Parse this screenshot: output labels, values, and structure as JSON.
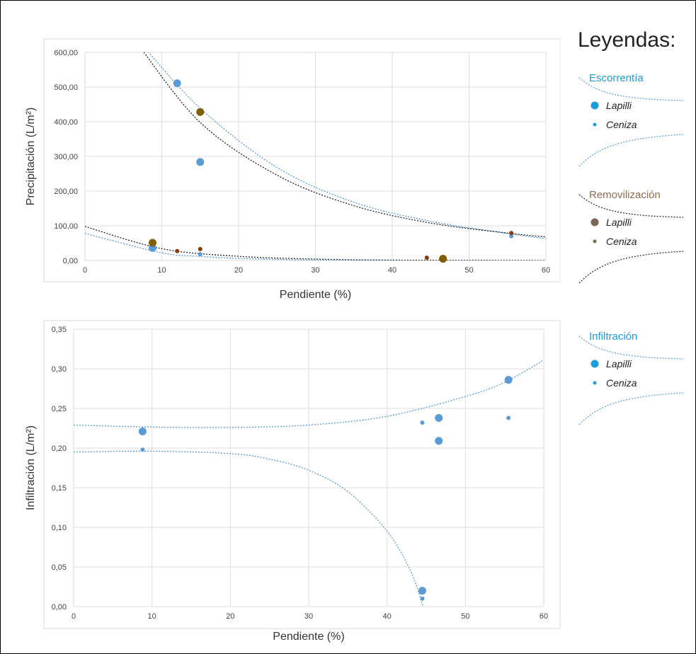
{
  "chart_data": [
    {
      "type": "scatter",
      "xlabel": "Pendiente (%)",
      "ylabel": "Precipitación (L/m²)",
      "xlim": [
        0,
        60
      ],
      "ylim": [
        0,
        600
      ],
      "x_ticks": [
        "0",
        "10",
        "20",
        "30",
        "40",
        "50",
        "60"
      ],
      "y_ticks": [
        "0,00",
        "100,00",
        "200,00",
        "300,00",
        "400,00",
        "500,00",
        "600,00"
      ],
      "grid": true,
      "series": [
        {
          "color": "#5b9bd5",
          "marker": "large",
          "points": [
            [
              12,
              511
            ],
            [
              15,
              284
            ],
            [
              8.8,
              36
            ]
          ]
        },
        {
          "color": "#5b9bd5",
          "marker": "small",
          "points": [
            [
              15,
              18
            ],
            [
              55.5,
              70
            ]
          ]
        },
        {
          "color": "#7f5f00",
          "marker": "large",
          "points": [
            [
              15,
              428
            ],
            [
              8.8,
              51
            ],
            [
              46.6,
              5
            ]
          ]
        },
        {
          "color": "#843c0c",
          "marker": "small",
          "points": [
            [
              12,
              27
            ],
            [
              15,
              33
            ],
            [
              44.5,
              8
            ],
            [
              55.5,
              79
            ]
          ]
        }
      ],
      "trendlines": [
        {
          "color": "#5b9bd5",
          "points": [
            [
              7.5,
              620
            ],
            [
              15,
              439
            ],
            [
              25,
              268
            ],
            [
              35,
              168
            ],
            [
              45,
              113
            ],
            [
              55,
              78
            ],
            [
              60,
              63
            ]
          ]
        },
        {
          "color": "#222222",
          "points": [
            [
              7,
              620
            ],
            [
              15,
              398
            ],
            [
              25,
              246
            ],
            [
              35,
              158
            ],
            [
              45,
              108
            ],
            [
              55,
              79
            ],
            [
              60,
              68
            ]
          ]
        },
        {
          "color": "#222222",
          "points": [
            [
              0,
              98
            ],
            [
              10,
              34
            ],
            [
              20,
              12
            ],
            [
              30,
              4
            ],
            [
              40,
              1
            ],
            [
              50,
              0.5
            ],
            [
              60,
              0
            ]
          ]
        },
        {
          "color": "#5b9bd5",
          "points": [
            [
              0,
              78
            ],
            [
              10,
              22
            ],
            [
              15,
              12
            ],
            [
              20,
              6
            ],
            [
              30,
              1
            ],
            [
              40,
              0
            ]
          ]
        }
      ]
    },
    {
      "type": "scatter",
      "xlabel": "Pendiente (%)",
      "ylabel": "Infiltración (L/m²)",
      "xlim": [
        0,
        60
      ],
      "ylim": [
        0,
        0.35
      ],
      "x_ticks": [
        "0",
        "10",
        "20",
        "30",
        "40",
        "50",
        "60"
      ],
      "y_ticks": [
        "0,00",
        "0,05",
        "0,10",
        "0,15",
        "0,20",
        "0,25",
        "0,30",
        "0,35"
      ],
      "grid": true,
      "series": [
        {
          "color": "#5b9bd5",
          "marker": "large",
          "points": [
            [
              8.8,
              0.221
            ],
            [
              46.6,
              0.238
            ],
            [
              46.6,
              0.209
            ],
            [
              55.5,
              0.286
            ],
            [
              44.5,
              0.02
            ]
          ]
        },
        {
          "color": "#5b9bd5",
          "marker": "small",
          "points": [
            [
              8.8,
              0.198
            ],
            [
              44.5,
              0.232
            ],
            [
              55.5,
              0.238
            ],
            [
              44.5,
              0.01
            ]
          ]
        }
      ],
      "trendlines": [
        {
          "color": "#5b9bd5",
          "points": [
            [
              0,
              0.229
            ],
            [
              10,
              0.2265
            ],
            [
              20,
              0.226
            ],
            [
              30,
              0.229
            ],
            [
              40,
              0.24
            ],
            [
              50,
              0.265
            ],
            [
              55,
              0.283
            ],
            [
              60,
              0.311
            ]
          ]
        },
        {
          "color": "#5b9bd5",
          "points": [
            [
              0,
              0.195
            ],
            [
              10,
              0.196
            ],
            [
              20,
              0.193
            ],
            [
              25,
              0.186
            ],
            [
              30,
              0.172
            ],
            [
              35,
              0.145
            ],
            [
              40,
              0.095
            ],
            [
              43,
              0.045
            ],
            [
              44.6,
              0
            ]
          ]
        }
      ]
    }
  ],
  "legend": {
    "title": "Leyendas:",
    "groups": [
      {
        "heading": "Escorrentía",
        "color": "#1f9bd7",
        "line_color": "#5b9bd5",
        "items": [
          {
            "label": "Lapilli",
            "dot_color": "#1f9bd7",
            "size": "large"
          },
          {
            "label": "Ceniza",
            "dot_color": "#1f9bd7",
            "size": "small"
          }
        ]
      },
      {
        "heading": "Removilización",
        "color": "#8c6d4f",
        "line_color": "#222222",
        "items": [
          {
            "label": "Lapilli",
            "dot_color": "#7a6552",
            "size": "large"
          },
          {
            "label": "Ceniza",
            "dot_color": "#7a6552",
            "size": "small"
          }
        ]
      },
      {
        "heading": "Infiltración",
        "color": "#1f9bd7",
        "line_color": "#5b9bd5",
        "items": [
          {
            "label": "Lapilli",
            "dot_color": "#1f9bd7",
            "size": "large"
          },
          {
            "label": "Ceniza",
            "dot_color": "#1f9bd7",
            "size": "small"
          }
        ]
      }
    ]
  }
}
